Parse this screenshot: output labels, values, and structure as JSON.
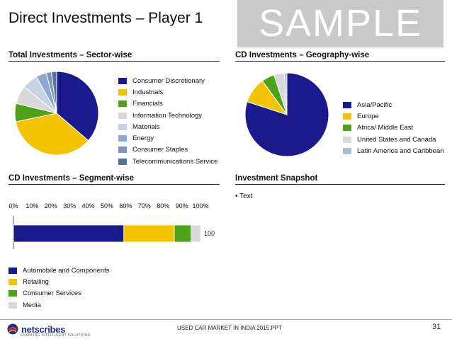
{
  "header": {
    "title": "Direct Investments – Player 1",
    "watermark": "SAMPLE"
  },
  "sections": {
    "sector": "Total Investments – Sector-wise",
    "geography": "CD Investments – Geography-wise",
    "segment": "CD Investments – Segment-wise",
    "snapshot": "Investment Snapshot"
  },
  "snapshot": {
    "bullet": "• Text"
  },
  "footer": {
    "brand": "netscribes",
    "brand_sub": "ENABLING INTELLIGENT SOLUTIONS",
    "report": "USED CAR MARKET IN INDIA 2015.PPT",
    "page": "31"
  },
  "colors": {
    "navy": "#1a1a8c",
    "yellow": "#f5c400",
    "green": "#4ea21a",
    "light_gray": "#d9d9d9",
    "light_blue": "#c6d3e5",
    "steel_blue": "#8da9cf",
    "slate_blue": "#7e95bb",
    "dark_slate": "#53739f"
  },
  "chart_data": [
    {
      "type": "pie",
      "labels": [
        "Consumer Discretionary",
        "Industrials",
        "Financials",
        "Information Technology",
        "Materials",
        "Energy",
        "Consumer Staples",
        "Telecommunications Service"
      ],
      "values": [
        36,
        35,
        7,
        7,
        6,
        4,
        2,
        2
      ],
      "colors": [
        "#1a1a8c",
        "#f5c400",
        "#4ea21a",
        "#d9d9d9",
        "#c6d3e5",
        "#8da9cf",
        "#7e95bb",
        "#53739f"
      ],
      "legend": "right"
    },
    {
      "type": "pie",
      "labels": [
        "Asia/Pacific",
        "Europe",
        "Africa/ Middle East",
        "United States and Canada",
        "Latin America and Caribbean"
      ],
      "values": [
        80,
        10,
        5,
        4,
        1
      ],
      "colors": [
        "#1a1a8c",
        "#f5c400",
        "#4ea21a",
        "#d9d9d9",
        "#a7bcd9"
      ],
      "legend": "right"
    },
    {
      "type": "bar",
      "orientation": "horizontal",
      "stacked": "percent",
      "categories": [
        "100"
      ],
      "series": [
        {
          "name": "Automobile and Components",
          "values": [
            59
          ]
        },
        {
          "name": "Retailing",
          "values": [
            27
          ]
        },
        {
          "name": "Consumer Services",
          "values": [
            9
          ]
        },
        {
          "name": "Media",
          "values": [
            5
          ]
        }
      ],
      "colors": [
        "#1a1a8c",
        "#f5c400",
        "#4ea21a",
        "#d9d9d9"
      ],
      "x_ticks": [
        "0%",
        "10%",
        "20%",
        "30%",
        "40%",
        "50%",
        "60%",
        "70%",
        "80%",
        "90%",
        "100%"
      ],
      "xlim": [
        0,
        100
      ],
      "legend": "bottom"
    }
  ]
}
